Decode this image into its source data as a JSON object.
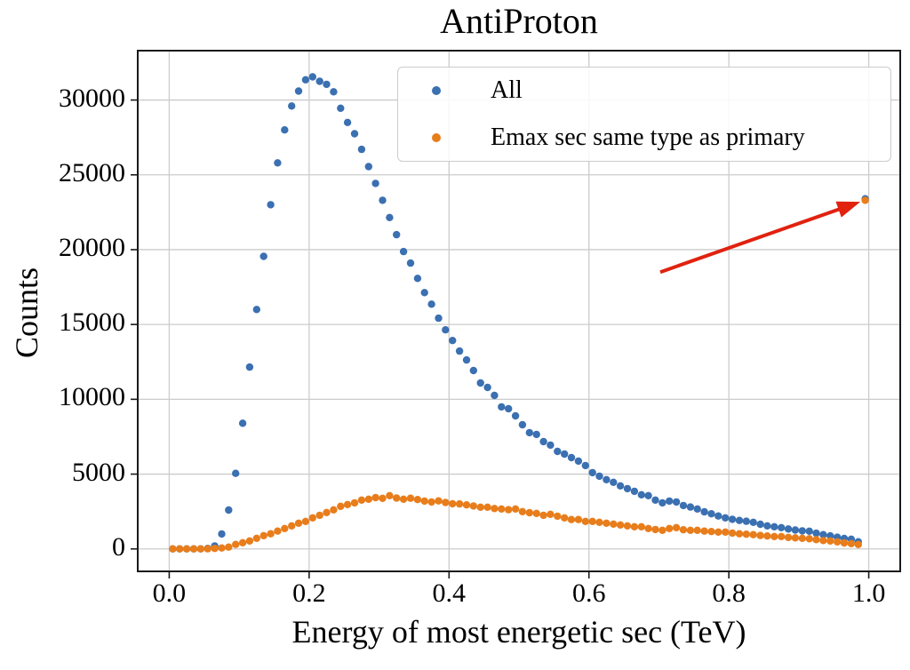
{
  "chart_data": {
    "type": "scatter",
    "title": "AntiProton",
    "xlabel": "Energy of most energetic sec (TeV)",
    "ylabel": "Counts",
    "grid": true,
    "legend_position": "upper right inside axes",
    "xlim": [
      -0.045,
      1.045
    ],
    "ylim": [
      -1500,
      33300
    ],
    "xticks": [
      0.0,
      0.2,
      0.4,
      0.6,
      0.8,
      1.0
    ],
    "xtick_labels": [
      "0.0",
      "0.2",
      "0.4",
      "0.6",
      "0.8",
      "1.0"
    ],
    "yticks": [
      0,
      5000,
      10000,
      15000,
      20000,
      25000,
      30000
    ],
    "ytick_labels": [
      "0",
      "5000",
      "10000",
      "15000",
      "20000",
      "25000",
      "30000"
    ],
    "x": [
      0.005,
      0.015,
      0.025,
      0.035,
      0.045,
      0.055,
      0.065,
      0.075,
      0.085,
      0.095,
      0.105,
      0.115,
      0.125,
      0.135,
      0.145,
      0.155,
      0.165,
      0.175,
      0.185,
      0.195,
      0.205,
      0.215,
      0.225,
      0.235,
      0.245,
      0.255,
      0.265,
      0.275,
      0.285,
      0.295,
      0.305,
      0.315,
      0.325,
      0.335,
      0.345,
      0.355,
      0.365,
      0.375,
      0.385,
      0.395,
      0.405,
      0.415,
      0.425,
      0.435,
      0.445,
      0.455,
      0.465,
      0.475,
      0.485,
      0.495,
      0.505,
      0.515,
      0.525,
      0.535,
      0.545,
      0.555,
      0.565,
      0.575,
      0.585,
      0.595,
      0.605,
      0.615,
      0.625,
      0.635,
      0.645,
      0.655,
      0.665,
      0.675,
      0.685,
      0.695,
      0.705,
      0.715,
      0.725,
      0.735,
      0.745,
      0.755,
      0.765,
      0.775,
      0.785,
      0.795,
      0.805,
      0.815,
      0.825,
      0.835,
      0.845,
      0.855,
      0.865,
      0.875,
      0.885,
      0.895,
      0.905,
      0.915,
      0.925,
      0.935,
      0.945,
      0.955,
      0.965,
      0.975,
      0.985,
      0.995
    ],
    "series": [
      {
        "name": "All",
        "color": "#3b70b1",
        "values": [
          0,
          0,
          0,
          0,
          5,
          30,
          200,
          1000,
          2600,
          5050,
          8400,
          12150,
          16000,
          19550,
          23000,
          25800,
          28000,
          29600,
          30600,
          31350,
          31550,
          31250,
          31050,
          30550,
          29450,
          28500,
          27750,
          26700,
          25550,
          24430,
          23300,
          22150,
          21000,
          19870,
          19100,
          18080,
          17130,
          16360,
          15420,
          14640,
          13930,
          13220,
          12630,
          11920,
          11090,
          10790,
          10260,
          9490,
          9370,
          8890,
          8300,
          7770,
          7650,
          7170,
          6940,
          6520,
          6340,
          6100,
          5870,
          5570,
          5100,
          4860,
          4630,
          4450,
          4210,
          4030,
          3850,
          3620,
          3560,
          3260,
          3080,
          3200,
          3140,
          2900,
          2800,
          2670,
          2480,
          2350,
          2200,
          2075,
          1980,
          1900,
          1850,
          1780,
          1650,
          1540,
          1480,
          1420,
          1330,
          1260,
          1210,
          1185,
          1050,
          950,
          870,
          780,
          700,
          650,
          475,
          23400
        ]
      },
      {
        "name": "Emax sec same type as primary",
        "color": "#e87d1c",
        "values": [
          0,
          0,
          0,
          0,
          0,
          10,
          30,
          60,
          120,
          300,
          415,
          530,
          710,
          890,
          1010,
          1190,
          1360,
          1540,
          1720,
          1840,
          2075,
          2250,
          2430,
          2610,
          2850,
          2965,
          3080,
          3260,
          3320,
          3430,
          3380,
          3560,
          3400,
          3320,
          3390,
          3300,
          3200,
          3140,
          3210,
          3100,
          3020,
          3010,
          2940,
          2870,
          2790,
          2790,
          2700,
          2670,
          2620,
          2670,
          2490,
          2420,
          2370,
          2250,
          2310,
          2190,
          2075,
          1960,
          1960,
          1840,
          1840,
          1780,
          1720,
          1660,
          1600,
          1540,
          1480,
          1480,
          1360,
          1300,
          1245,
          1360,
          1420,
          1280,
          1245,
          1245,
          1190,
          1160,
          1125,
          1125,
          1060,
          1010,
          980,
          950,
          900,
          865,
          830,
          830,
          770,
          740,
          710,
          680,
          620,
          560,
          530,
          470,
          400,
          355,
          295,
          23300
        ]
      }
    ],
    "annotation": {
      "type": "arrow",
      "color": "#e0220f",
      "from_x": 0.702,
      "from_y": 18500,
      "to_x": 0.988,
      "to_y": 23200,
      "points_at": "spike at x=0.995, ~23300 counts"
    },
    "colors": {
      "grid": "#cccccc",
      "spine": "#1a1a1a",
      "background": "#ffffff"
    }
  }
}
